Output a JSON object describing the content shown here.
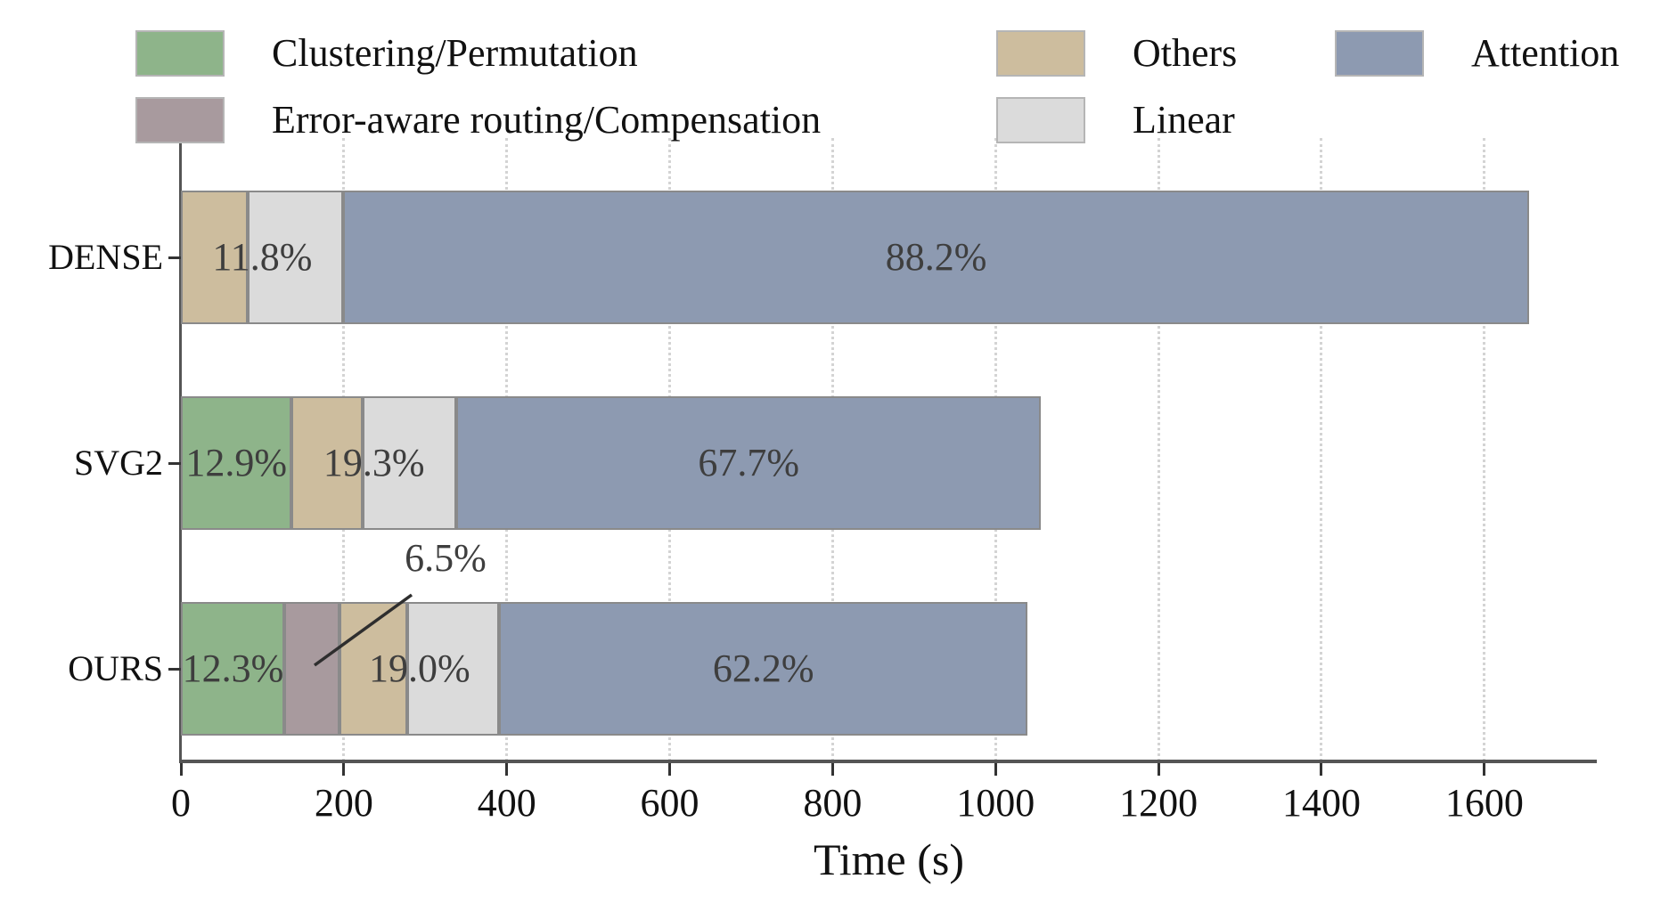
{
  "chart_data": {
    "type": "bar",
    "orientation": "horizontal",
    "stacked": true,
    "title": "",
    "xlabel": "Time (s)",
    "ylabel": "",
    "categories": [
      "DENSE",
      "SVG2",
      "OURS"
    ],
    "xlim": [
      0,
      1738
    ],
    "xticks": [
      0,
      200,
      400,
      600,
      800,
      1000,
      1200,
      1400,
      1600
    ],
    "grid": "vertical-dotted",
    "legend_position": "top",
    "series": [
      {
        "name": "Clustering/Permutation",
        "color": "#8eb48a",
        "values_s": [
          0,
          136,
          127
        ]
      },
      {
        "name": "Error-aware routing/Compensation",
        "color": "#a89a9e",
        "values_s": [
          0,
          0,
          68
        ]
      },
      {
        "name": "Others",
        "color": "#cdbd9e",
        "values_s": [
          82,
          87,
          83
        ]
      },
      {
        "name": "Linear",
        "color": "#dbdbdb",
        "values_s": [
          117,
          115,
          113
        ]
      },
      {
        "name": "Attention",
        "color": "#8d9ab1",
        "values_s": [
          1456,
          717,
          648
        ]
      }
    ],
    "totals_s": [
      1655,
      1055,
      1039
    ],
    "percent_labels": [
      {
        "row": 0,
        "text": "11.8%",
        "at_s": 100
      },
      {
        "row": 0,
        "text": "88.2%",
        "at_s": 927
      },
      {
        "row": 1,
        "text": "12.9%",
        "at_s": 68
      },
      {
        "row": 1,
        "text": "19.3%",
        "at_s": 237
      },
      {
        "row": 1,
        "text": "67.7%",
        "at_s": 697
      },
      {
        "row": 2,
        "text": "12.3%",
        "at_s": 64
      },
      {
        "row": 2,
        "text": "19.0%",
        "at_s": 293
      },
      {
        "row": 2,
        "text": "62.2%",
        "at_s": 715
      }
    ],
    "annotation": {
      "text": "6.5%",
      "refers_to_series": "Error-aware routing/Compensation",
      "refers_to_category": "OURS"
    },
    "legend": [
      {
        "label": "Clustering/Permutation",
        "color": "#8eb48a",
        "row": 0,
        "col": 0
      },
      {
        "label": "Error-aware routing/Compensation",
        "color": "#a89a9e",
        "row": 1,
        "col": 0
      },
      {
        "label": "Others",
        "color": "#cdbd9e",
        "row": 0,
        "col": 1
      },
      {
        "label": "Linear",
        "color": "#dbdbdb",
        "row": 1,
        "col": 1
      },
      {
        "label": "Attention",
        "color": "#8d9ab1",
        "row": 0,
        "col": 2
      }
    ]
  }
}
